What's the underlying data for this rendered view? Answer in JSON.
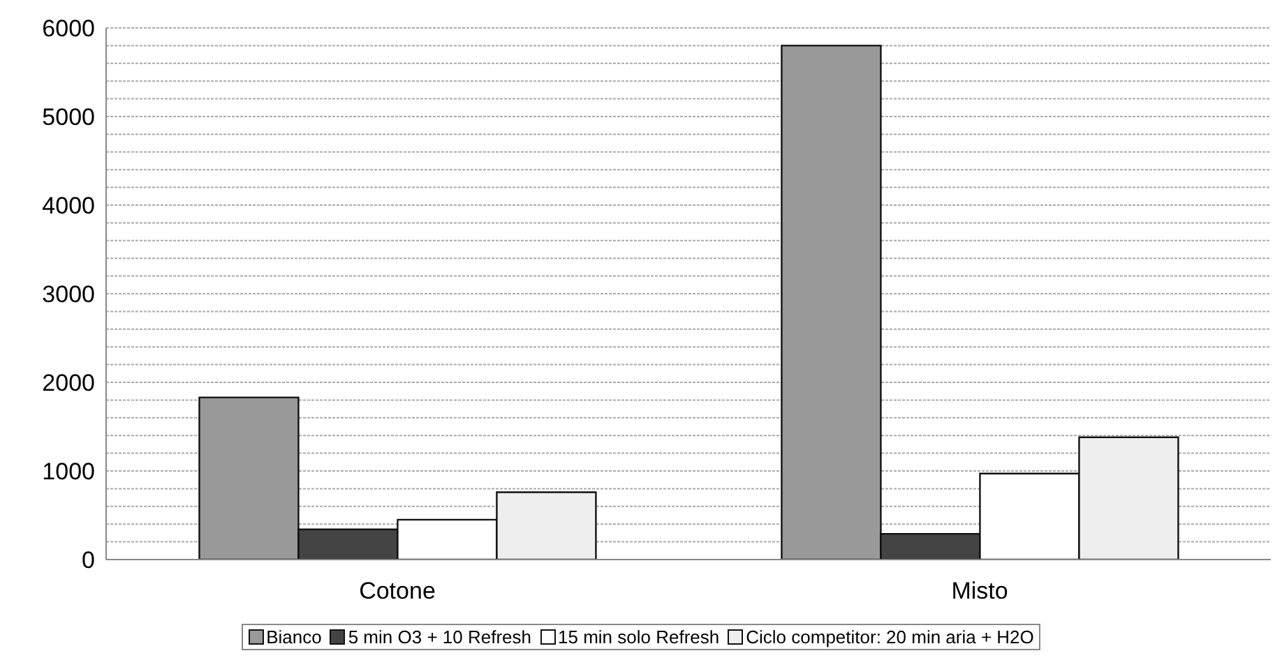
{
  "chart_data": {
    "type": "bar",
    "categories": [
      "Cotone",
      "Misto"
    ],
    "series": [
      {
        "name": "Bianco",
        "color": "#999999",
        "values": [
          1830,
          5800
        ]
      },
      {
        "name": "5 min O3 + 10 Refresh",
        "color": "#444444",
        "values": [
          340,
          290
        ]
      },
      {
        "name": "15 min solo Refresh",
        "color": "#ffffff",
        "values": [
          450,
          970
        ]
      },
      {
        "name": "Ciclo competitor: 20 min aria + H2O",
        "color": "#eeeeee",
        "values": [
          760,
          1380
        ]
      }
    ],
    "ylim": [
      0,
      6000
    ],
    "yticks": [
      0,
      {
        "value": 200,
        "label": null
      },
      {
        "value": 400,
        "label": null
      },
      {
        "value": 600,
        "label": null
      },
      {
        "value": 800,
        "label": null
      },
      1000,
      {
        "value": 1200,
        "label": null
      },
      {
        "value": 1400,
        "label": null
      },
      {
        "value": 1600,
        "label": null
      },
      {
        "value": 1800,
        "label": null
      },
      2000,
      {
        "value": 2200,
        "label": null
      },
      {
        "value": 2400,
        "label": null
      },
      {
        "value": 2600,
        "label": null
      },
      {
        "value": 2800,
        "label": null
      },
      3000,
      {
        "value": 3200,
        "label": null
      },
      {
        "value": 3400,
        "label": null
      },
      {
        "value": 3600,
        "label": null
      },
      {
        "value": 3800,
        "label": null
      },
      4000,
      {
        "value": 4200,
        "label": null
      },
      {
        "value": 4400,
        "label": null
      },
      {
        "value": 4600,
        "label": null
      },
      {
        "value": 4800,
        "label": null
      },
      5000,
      {
        "value": 5200,
        "label": null
      },
      {
        "value": 5400,
        "label": null
      },
      {
        "value": 5600,
        "label": null
      },
      {
        "value": 5800,
        "label": null
      },
      6000
    ],
    "grid": "y",
    "legend": "bottom"
  }
}
